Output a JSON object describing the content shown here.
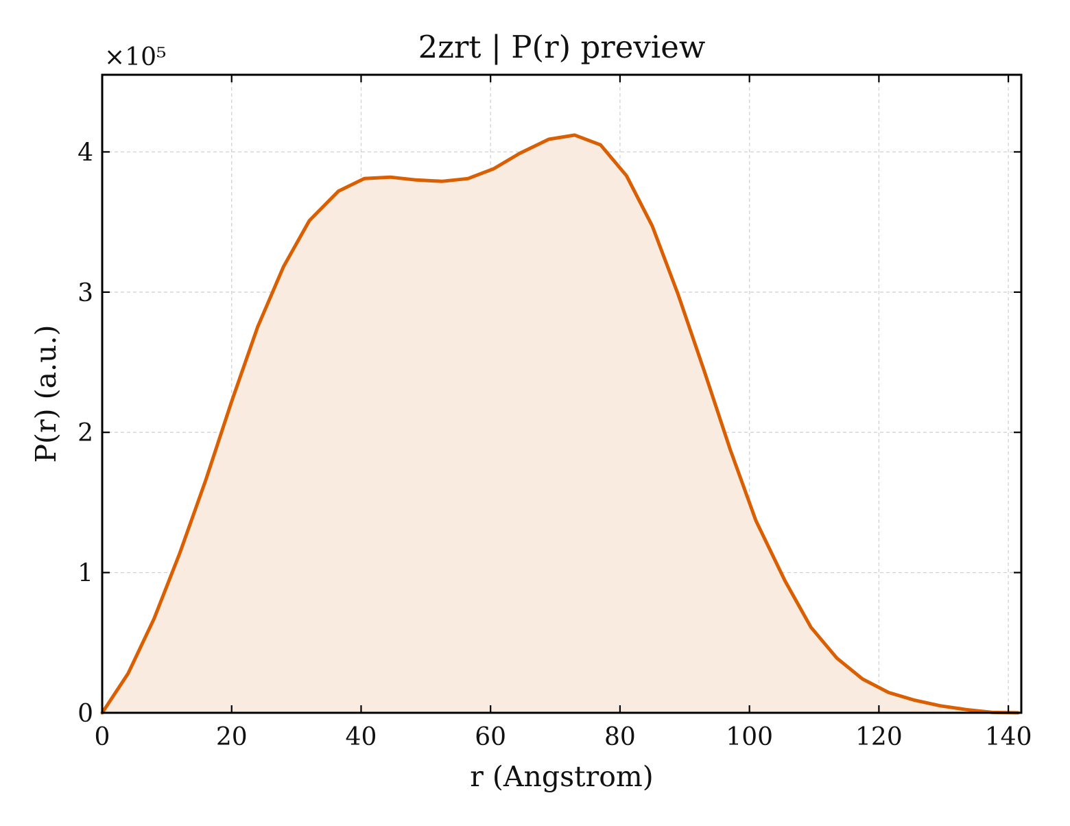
{
  "chart_data": {
    "type": "area",
    "title": "2zrt | P(r) preview",
    "xlabel": "r (Angstrom)",
    "ylabel": "P(r) (a.u.)",
    "y_multiplier_label": "×10⁵",
    "xlim": [
      0,
      142
    ],
    "ylim": [
      0,
      4.55
    ],
    "xticks": [
      0,
      20,
      40,
      60,
      80,
      100,
      120,
      140
    ],
    "xtick_labels": [
      "0",
      "20",
      "40",
      "60",
      "80",
      "100",
      "120",
      "140"
    ],
    "yticks": [
      0,
      1,
      2,
      3,
      4
    ],
    "ytick_labels": [
      "0",
      "1",
      "2",
      "3",
      "4"
    ],
    "grid": true,
    "legend": "none",
    "colors": {
      "line": "#d95f02",
      "fill": "#f9ebe0",
      "grid": "#d3d3d3",
      "axes": "#000000"
    },
    "series": [
      {
        "x": [
          0,
          4,
          8,
          12,
          16,
          20,
          24,
          28,
          32,
          36.5,
          40.5,
          44.5,
          48.5,
          52.5,
          56.5,
          60.5,
          64.5,
          69,
          73,
          77,
          81,
          85,
          89,
          93,
          97,
          101,
          105.5,
          109.5,
          113.5,
          117.5,
          121.5,
          125.5,
          129.5,
          133.5,
          137.5,
          141.5
        ],
        "values": [
          0,
          0.28,
          0.67,
          1.14,
          1.66,
          2.22,
          2.75,
          3.18,
          3.51,
          3.72,
          3.81,
          3.82,
          3.8,
          3.79,
          3.81,
          3.88,
          3.99,
          4.09,
          4.12,
          4.05,
          3.83,
          3.47,
          2.98,
          2.44,
          1.88,
          1.37,
          0.94,
          0.61,
          0.39,
          0.24,
          0.145,
          0.09,
          0.05,
          0.023,
          0.003,
          0
        ]
      }
    ]
  }
}
